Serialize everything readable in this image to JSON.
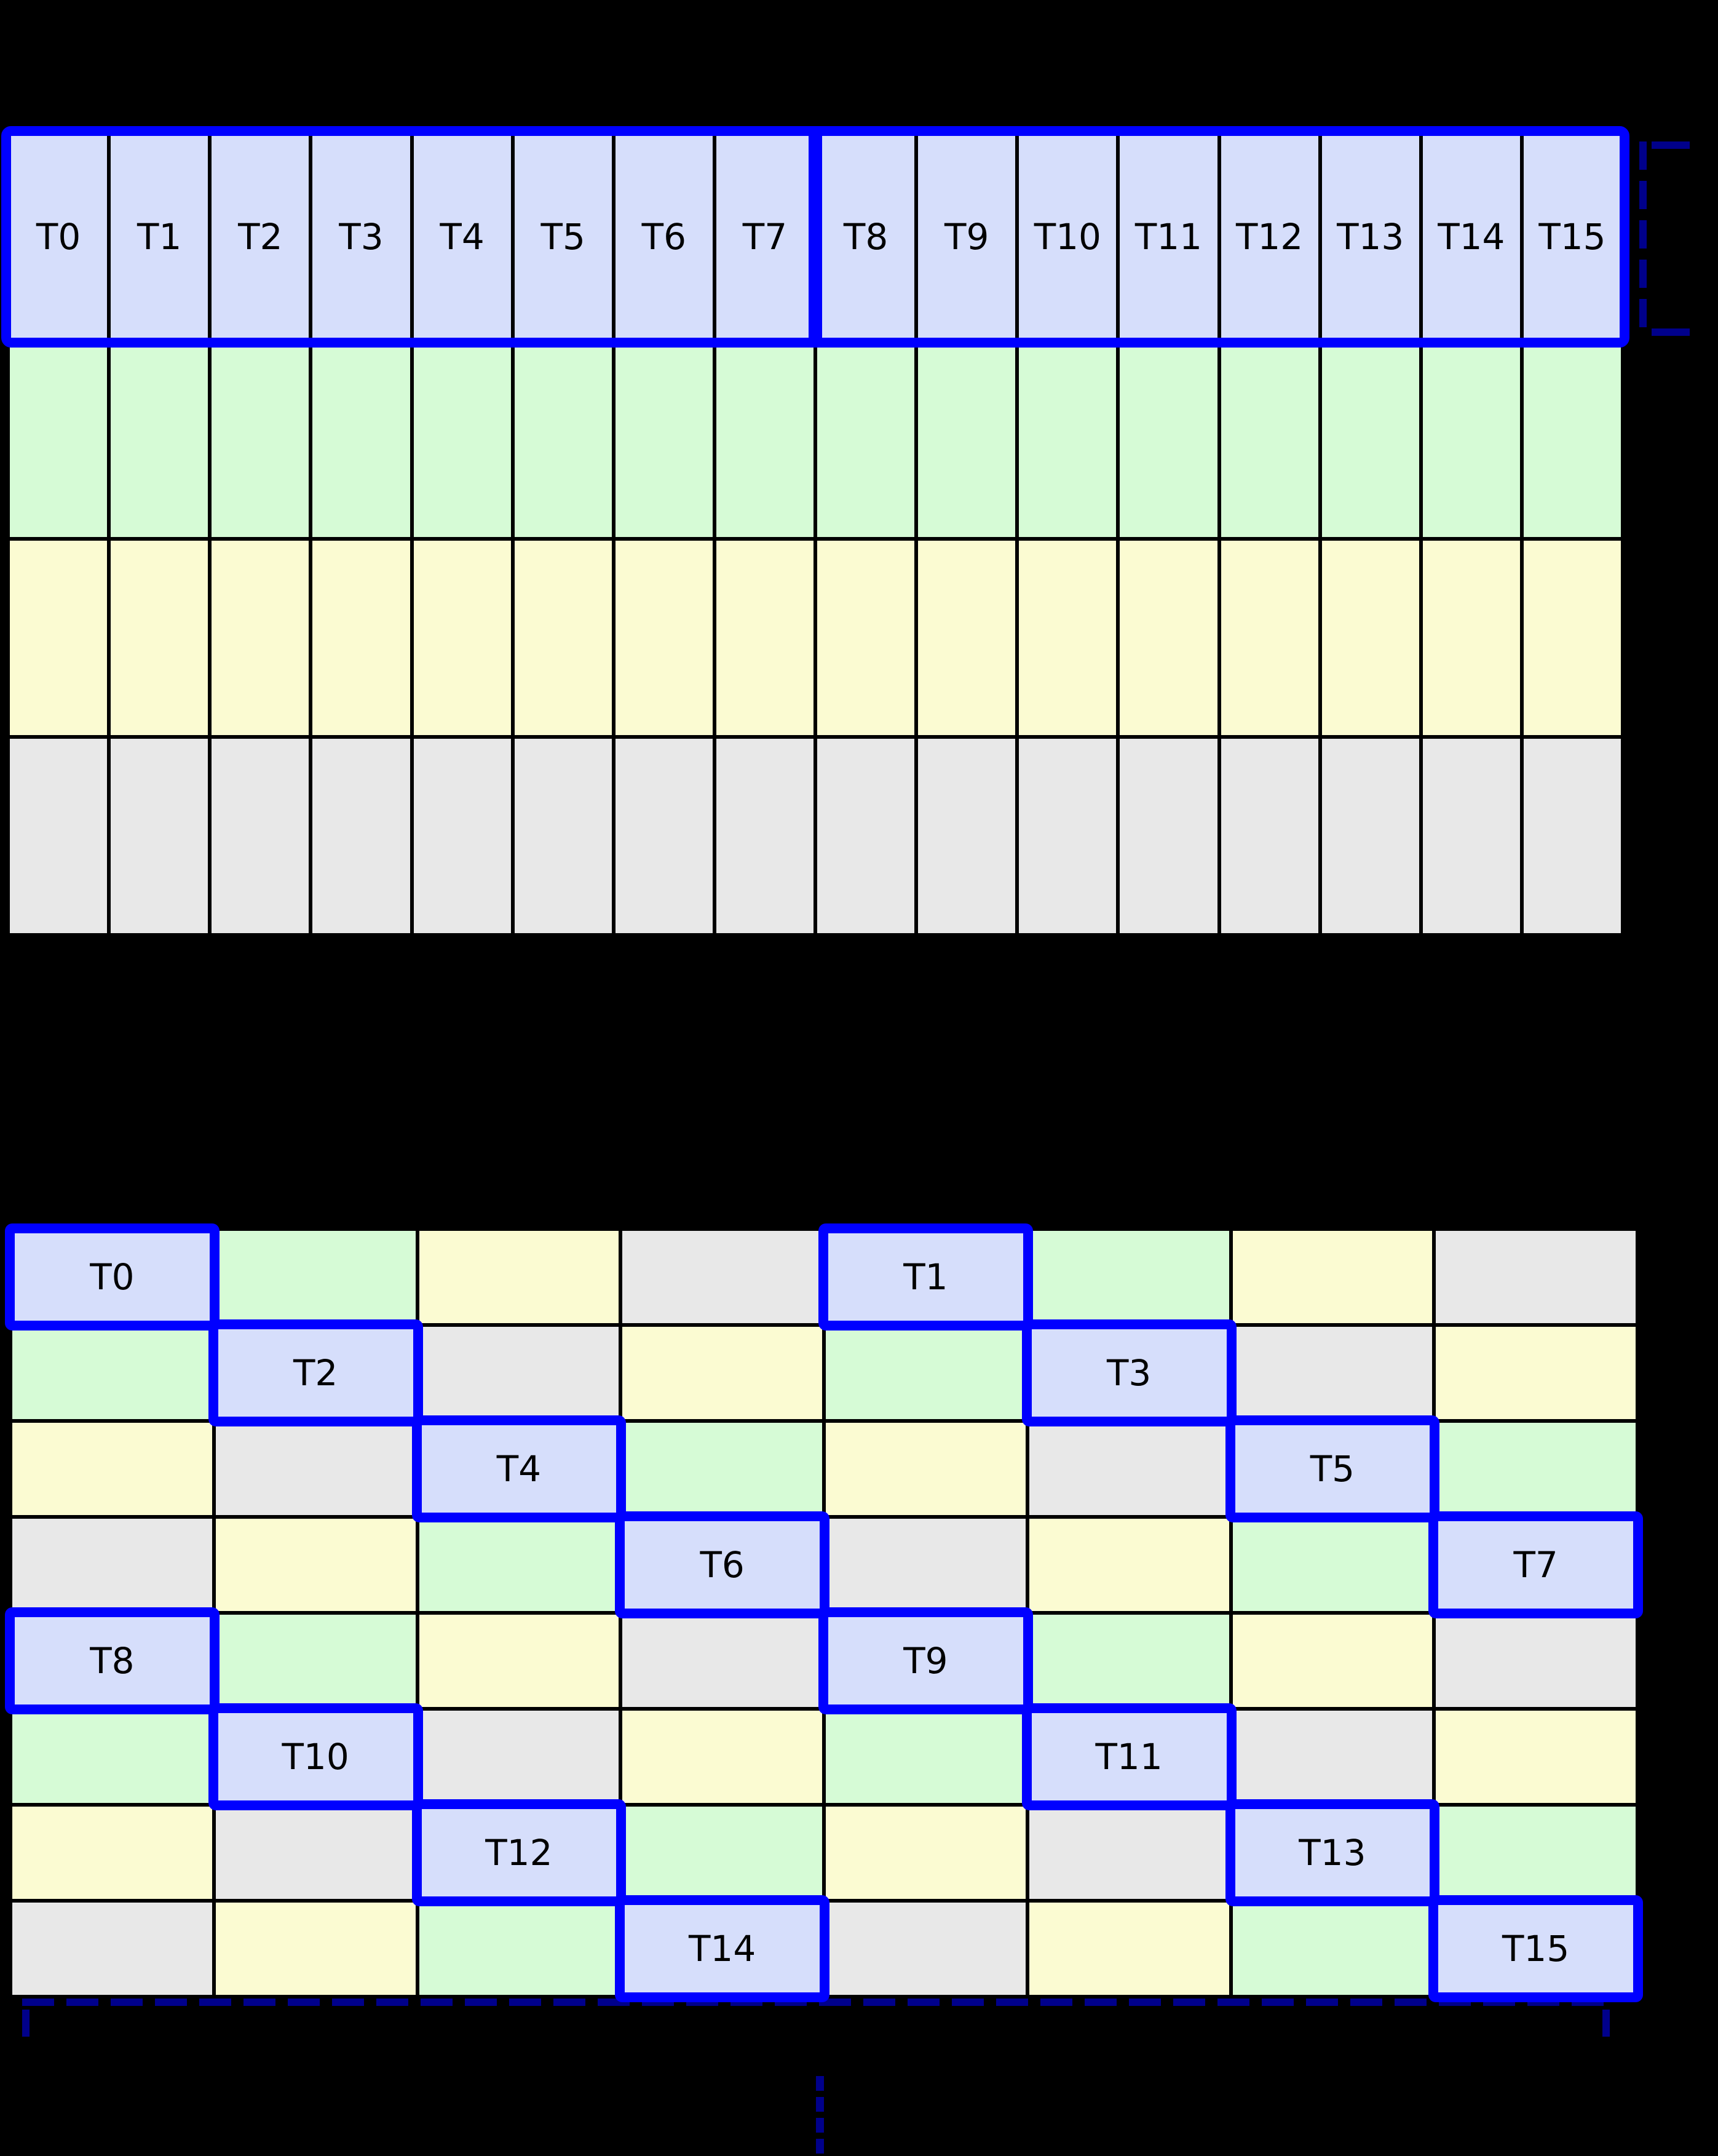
{
  "colors": {
    "background": "#000000",
    "grid_line": "#000000",
    "thread_fill": "#d6defb",
    "green_fill": "#d6fbd6",
    "yellow_fill": "#fbfbd2",
    "gray_fill": "#e8e8e8",
    "highlight_blue": "#0000ff",
    "dashed_navy": "#00008b",
    "text": "#000000"
  },
  "top_grid": {
    "cols": 16,
    "thread_labels": [
      "T0",
      "T1",
      "T2",
      "T3",
      "T4",
      "T5",
      "T6",
      "T7",
      "T8",
      "T9",
      "T10",
      "T11",
      "T12",
      "T13",
      "T14",
      "T15"
    ],
    "data_row_colors": [
      "green",
      "yellow",
      "gray"
    ]
  },
  "bottom_grid": {
    "rows": 8,
    "cols": 8,
    "cells": [
      [
        {
          "label": "T0",
          "color": "thread"
        },
        {
          "color": "green"
        },
        {
          "color": "yellow"
        },
        {
          "color": "gray"
        },
        {
          "label": "T1",
          "color": "thread"
        },
        {
          "color": "green"
        },
        {
          "color": "yellow"
        },
        {
          "color": "gray"
        }
      ],
      [
        {
          "color": "green"
        },
        {
          "label": "T2",
          "color": "thread"
        },
        {
          "color": "gray"
        },
        {
          "color": "yellow"
        },
        {
          "color": "green"
        },
        {
          "label": "T3",
          "color": "thread"
        },
        {
          "color": "gray"
        },
        {
          "color": "yellow"
        }
      ],
      [
        {
          "color": "yellow"
        },
        {
          "color": "gray"
        },
        {
          "label": "T4",
          "color": "thread"
        },
        {
          "color": "green"
        },
        {
          "color": "yellow"
        },
        {
          "color": "gray"
        },
        {
          "label": "T5",
          "color": "thread"
        },
        {
          "color": "green"
        }
      ],
      [
        {
          "color": "gray"
        },
        {
          "color": "yellow"
        },
        {
          "color": "green"
        },
        {
          "label": "T6",
          "color": "thread"
        },
        {
          "color": "gray"
        },
        {
          "color": "yellow"
        },
        {
          "color": "green"
        },
        {
          "label": "T7",
          "color": "thread"
        }
      ],
      [
        {
          "label": "T8",
          "color": "thread"
        },
        {
          "color": "green"
        },
        {
          "color": "yellow"
        },
        {
          "color": "gray"
        },
        {
          "label": "T9",
          "color": "thread"
        },
        {
          "color": "green"
        },
        {
          "color": "yellow"
        },
        {
          "color": "gray"
        }
      ],
      [
        {
          "color": "green"
        },
        {
          "label": "T10",
          "color": "thread"
        },
        {
          "color": "gray"
        },
        {
          "color": "yellow"
        },
        {
          "color": "green"
        },
        {
          "label": "T11",
          "color": "thread"
        },
        {
          "color": "gray"
        },
        {
          "color": "yellow"
        }
      ],
      [
        {
          "color": "yellow"
        },
        {
          "color": "gray"
        },
        {
          "label": "T12",
          "color": "thread"
        },
        {
          "color": "green"
        },
        {
          "color": "yellow"
        },
        {
          "color": "gray"
        },
        {
          "label": "T13",
          "color": "thread"
        },
        {
          "color": "green"
        }
      ],
      [
        {
          "color": "gray"
        },
        {
          "color": "yellow"
        },
        {
          "color": "green"
        },
        {
          "label": "T14",
          "color": "thread"
        },
        {
          "color": "gray"
        },
        {
          "color": "yellow"
        },
        {
          "color": "green"
        },
        {
          "label": "T15",
          "color": "thread"
        }
      ]
    ]
  },
  "annotations": {
    "continuation_dashes": 4
  }
}
